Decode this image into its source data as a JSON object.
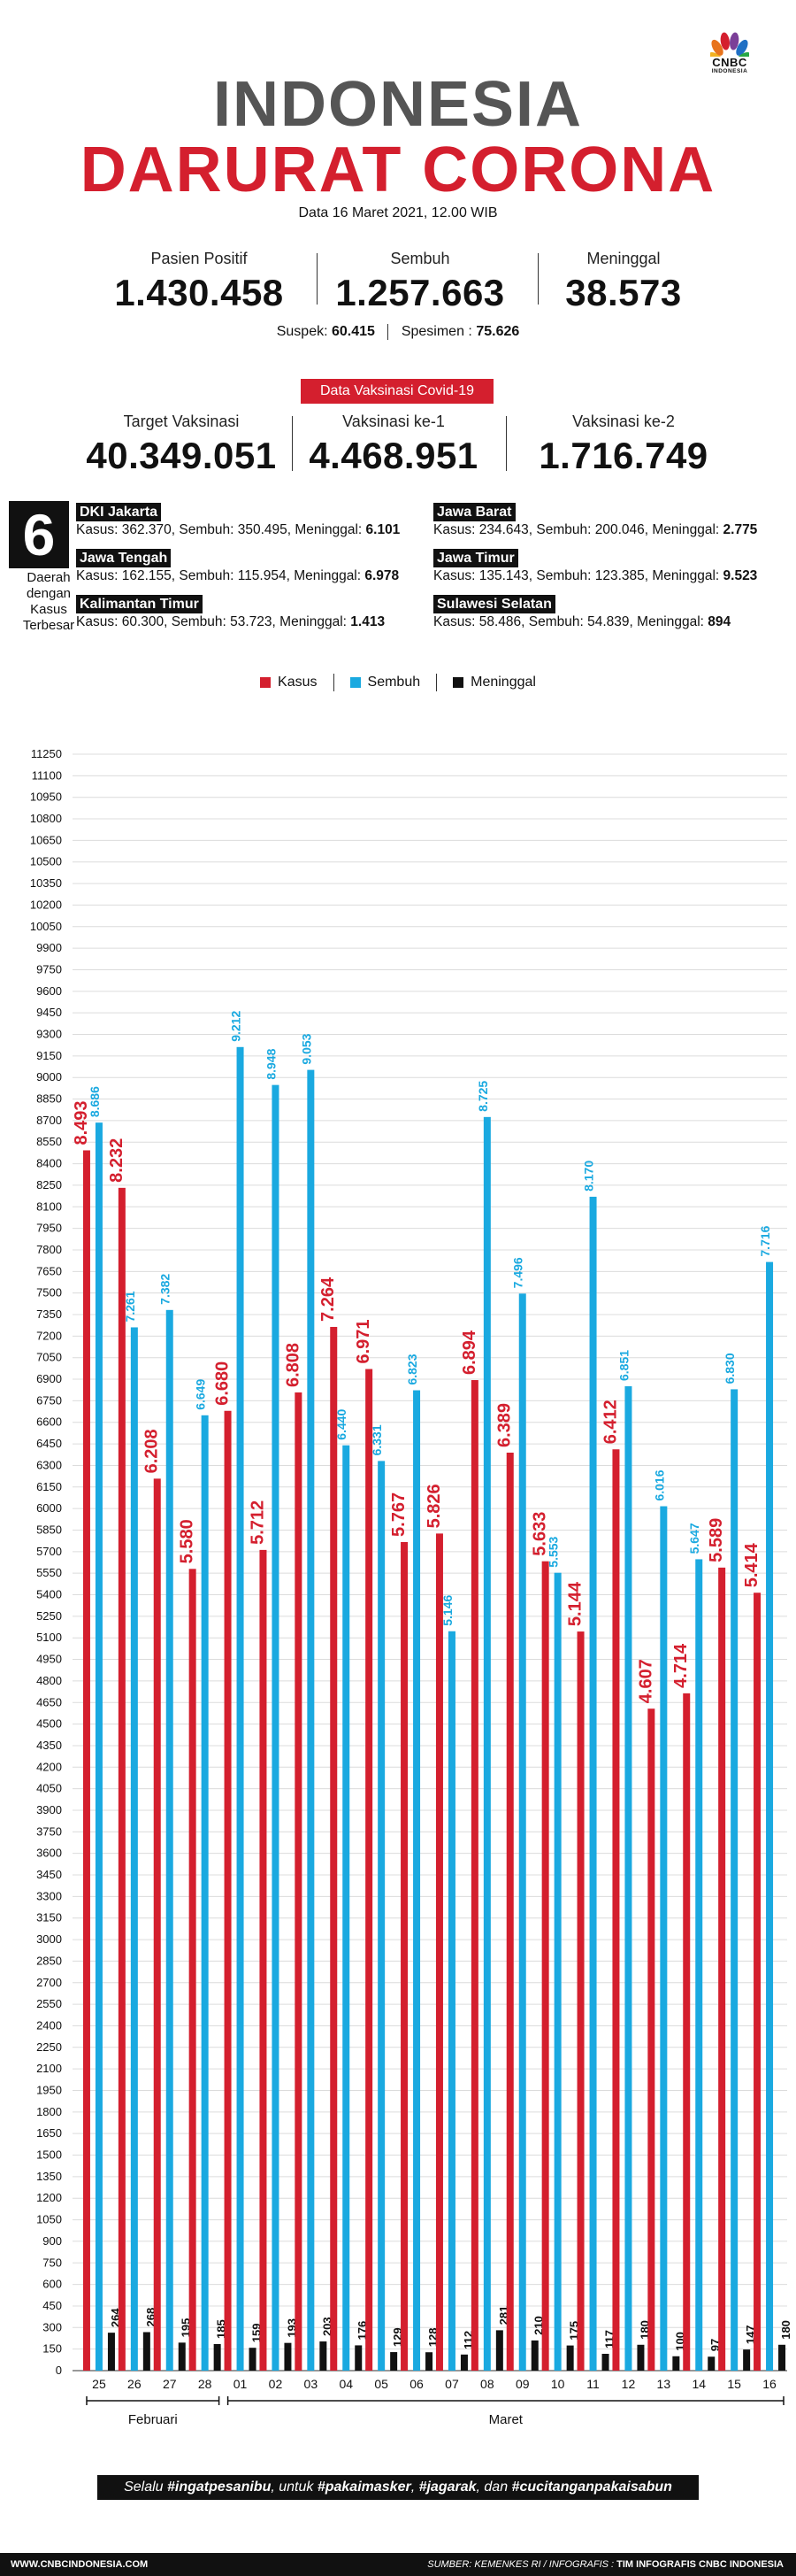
{
  "logo": {
    "line1": "CNBC",
    "line2": "INDONESIA"
  },
  "title_line1": "INDONESIA",
  "title_line2": "DARURAT CORONA",
  "date": "Data 16 Maret 2021, 12.00 WIB",
  "stats": [
    {
      "label": "Pasien Positif",
      "value": "1.430.458"
    },
    {
      "label": "Sembuh",
      "value": "1.257.663"
    },
    {
      "label": "Meninggal",
      "value": "38.573"
    }
  ],
  "suspek": {
    "label": "Suspek:",
    "value": "60.415"
  },
  "spesimen": {
    "label": "Spesimen :",
    "value": "75.626"
  },
  "vaccine_badge": "Data Vaksinasi Covid-19",
  "vaccine": [
    {
      "label": "Target Vaksinasi",
      "value": "40.349.051"
    },
    {
      "label": "Vaksinasi ke-1",
      "value": "4.468.951"
    },
    {
      "label": "Vaksinasi ke-2",
      "value": "1.716.749"
    }
  ],
  "top_regions": {
    "number": "6",
    "caption": [
      "Daerah",
      "dengan",
      "Kasus",
      "Terbesar"
    ],
    "labels": {
      "kasus": "Kasus:",
      "sembuh": "Sembuh:",
      "meninggal": "Meninggal:"
    },
    "items": [
      {
        "name": "DKI Jakarta",
        "kasus": "362.370",
        "sembuh": "350.495",
        "meninggal": "6.101"
      },
      {
        "name": "Jawa Barat",
        "kasus": "234.643",
        "sembuh": "200.046",
        "meninggal": "2.775"
      },
      {
        "name": "Jawa Tengah",
        "kasus": "162.155",
        "sembuh": "115.954",
        "meninggal": "6.978"
      },
      {
        "name": "Jawa Timur",
        "kasus": "135.143",
        "sembuh": "123.385",
        "meninggal": "9.523"
      },
      {
        "name": "Kalimantan Timur",
        "kasus": "60.300",
        "sembuh": "53.723",
        "meninggal": "1.413"
      },
      {
        "name": "Sulawesi Selatan",
        "kasus": "58.486",
        "sembuh": "54.839",
        "meninggal": "894"
      }
    ]
  },
  "colors": {
    "kasus": "#d41f2e",
    "sembuh": "#1aa9e0",
    "meninggal": "#111111",
    "title_gray": "#555555"
  },
  "chart_data": {
    "type": "bar",
    "title": "",
    "xlabel": "",
    "ylabel": "",
    "ylim": [
      0,
      11250
    ],
    "ytick_step": 150,
    "grid": true,
    "legend_position": "top-center",
    "categories": [
      "25",
      "26",
      "27",
      "28",
      "01",
      "02",
      "03",
      "04",
      "05",
      "06",
      "07",
      "08",
      "09",
      "10",
      "11",
      "12",
      "13",
      "14",
      "15",
      "16"
    ],
    "month_groups": [
      {
        "label": "Februari",
        "from": "25",
        "to": "28"
      },
      {
        "label": "Maret",
        "from": "01",
        "to": "16"
      }
    ],
    "series": [
      {
        "name": "Kasus",
        "color": "#d41f2e",
        "values": [
          8493,
          8232,
          6208,
          5580,
          6680,
          5712,
          6808,
          7264,
          6971,
          5767,
          5826,
          6894,
          6389,
          5633,
          5144,
          6412,
          4607,
          4714,
          5589,
          5414
        ],
        "labels": [
          "8.493",
          "8.232",
          "6.208",
          "5.580",
          "6.680",
          "5.712",
          "6.808",
          "7.264",
          "6.971",
          "5.767",
          "5.826",
          "6.894",
          "6.389",
          "5.633",
          "5.144",
          "6.412",
          "4.607",
          "4.714",
          "5.589",
          "5.414"
        ]
      },
      {
        "name": "Sembuh",
        "color": "#1aa9e0",
        "values": [
          8686,
          7261,
          7382,
          6649,
          9212,
          8948,
          9053,
          6440,
          6331,
          6823,
          5146,
          8725,
          7496,
          5553,
          8170,
          6851,
          6016,
          5647,
          6830,
          7716
        ],
        "labels": [
          "8.686",
          "7.261",
          "7.382",
          "6.649",
          "9.212",
          "8.948",
          "9.053",
          "6.440",
          "6.331",
          "6.823",
          "5.146",
          "8.725",
          "7.496",
          "5.553",
          "8.170",
          "6.851",
          "6.016",
          "5.647",
          "6.830",
          "7.716"
        ]
      },
      {
        "name": "Meninggal",
        "color": "#111111",
        "values": [
          264,
          268,
          195,
          185,
          159,
          193,
          203,
          176,
          129,
          128,
          112,
          281,
          210,
          175,
          117,
          180,
          100,
          97,
          147,
          180
        ],
        "labels": [
          "264",
          "268",
          "195",
          "185",
          "159",
          "193",
          "203",
          "176",
          "129",
          "128",
          "112",
          "281",
          "210",
          "175",
          "117",
          "180",
          "100",
          "97",
          "147",
          "180"
        ]
      }
    ]
  },
  "banner": {
    "pre": "Selalu ",
    "tag1": "#ingatpesanibu",
    "mid1": ", untuk ",
    "tag2": "#pakaimasker",
    "mid2": ", ",
    "tag3": "#jagarak",
    "mid3": ", dan ",
    "tag4": "#cucitanganpakaisabun"
  },
  "footer": {
    "site": "WWW.CNBCINDONESIA.COM",
    "source": "SUMBER: KEMENKES RI / INFOGRAFIS : ",
    "team": "TIM INFOGRAFIS CNBC INDONESIA"
  }
}
